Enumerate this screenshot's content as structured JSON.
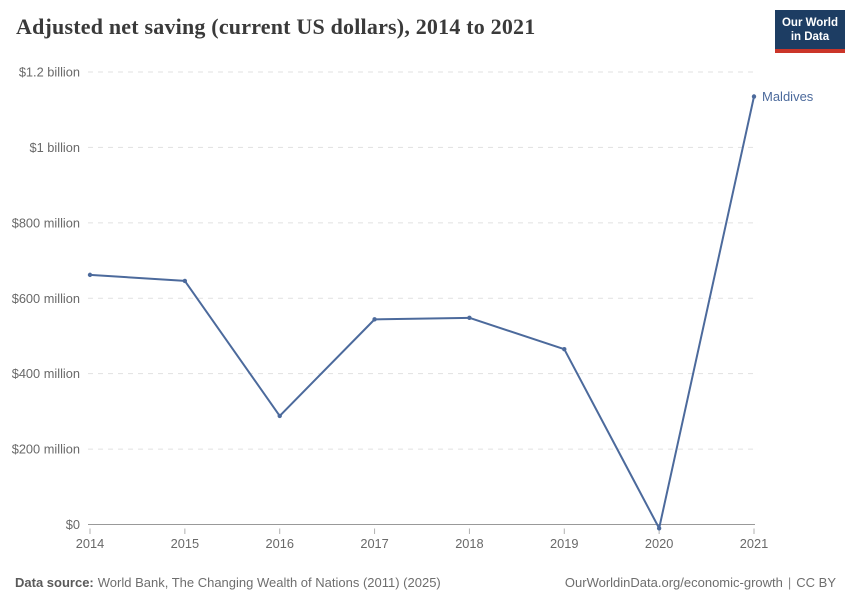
{
  "header": {
    "title": "Adjusted net saving (current US dollars), 2014 to 2021",
    "logo": {
      "line1": "Our World",
      "line2": "in Data"
    }
  },
  "chart_data": {
    "type": "line",
    "title": "Adjusted net saving (current US dollars), 2014 to 2021",
    "x": [
      2014,
      2015,
      2016,
      2017,
      2018,
      2019,
      2020,
      2021
    ],
    "series": [
      {
        "name": "Maldives",
        "color": "#4C6A9C",
        "values_usd_millions": [
          662,
          646,
          288,
          544,
          548,
          465,
          -10,
          1135
        ]
      }
    ],
    "end_label": "Maldives",
    "unit": "current US dollars",
    "yticks": [
      {
        "value_millions": 0,
        "label": "$0"
      },
      {
        "value_millions": 200,
        "label": "$200 million"
      },
      {
        "value_millions": 400,
        "label": "$400 million"
      },
      {
        "value_millions": 600,
        "label": "$600 million"
      },
      {
        "value_millions": 800,
        "label": "$800 million"
      },
      {
        "value_millions": 1000,
        "label": "$1 billion"
      },
      {
        "value_millions": 1200,
        "label": "$1.2 billion"
      }
    ],
    "ylim_millions": [
      0,
      1200
    ],
    "grid": "horizontal-dashed",
    "legend_position": "end-of-line"
  },
  "footer": {
    "source_label": "Data source:",
    "source_text": "World Bank, The Changing Wealth of Nations (2011) (2025)",
    "credit_url": "OurWorldinData.org/economic-growth",
    "separator": "|",
    "license": "CC BY"
  },
  "colors": {
    "line": "#4C6A9C",
    "title_text": "#3a3a3a",
    "tick_text": "#696969",
    "gridline": "#e1e1e1",
    "axis_line": "#999999",
    "footer_text": "#6e6e6e",
    "logo_bg": "#1d3d63",
    "logo_accent": "#cb3529"
  }
}
